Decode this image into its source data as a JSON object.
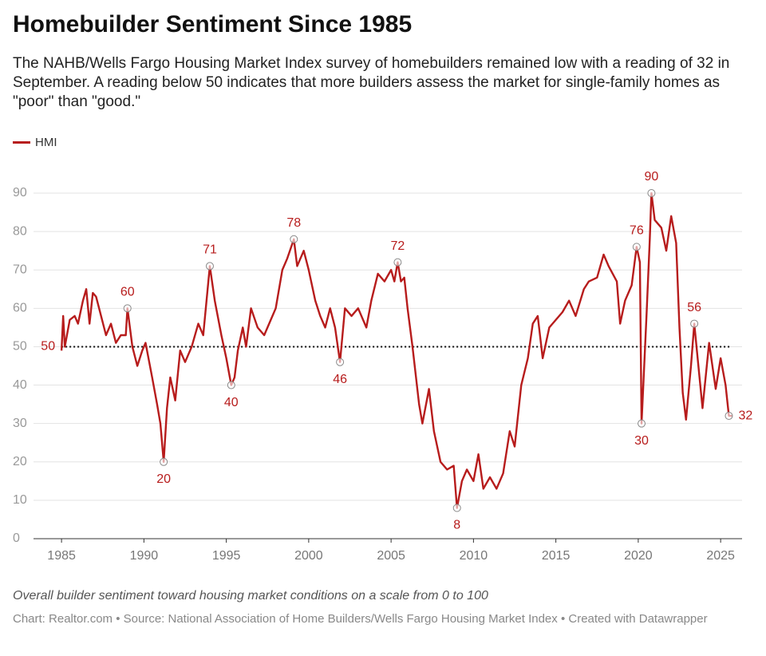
{
  "chart_data": {
    "type": "line",
    "title": "Homebuilder Sentiment Since 1985",
    "subtitle": "The NAHB/Wells Fargo Housing Market Index survey of homebuilders remained low with a reading of 32 in September. A reading below 50 indicates that more builders assess the market for single-family homes as \"poor\" than \"good.\"",
    "caption": "Overall builder sentiment toward housing market conditions on a scale from 0 to 100",
    "source": "Chart: Realtor.com • Source: National Association of Home Builders/Wells Fargo Housing Market Index • Created with Datawrapper",
    "xlim": [
      1983.3,
      2026.3
    ],
    "xticks": [
      1985,
      1990,
      1995,
      2000,
      2005,
      2010,
      2015,
      2020,
      2025
    ],
    "ylim": [
      0,
      90
    ],
    "yticks": [
      0,
      10,
      20,
      30,
      40,
      50,
      60,
      70,
      80,
      90
    ],
    "grid": true,
    "reference_line": 50,
    "series": [
      {
        "name": "HMI",
        "color": "#b71c1c",
        "x": [
          1985.0,
          1985.1,
          1985.2,
          1985.5,
          1985.8,
          1986.0,
          1986.3,
          1986.5,
          1986.7,
          1986.9,
          1987.1,
          1987.4,
          1987.7,
          1988.0,
          1988.3,
          1988.6,
          1988.9,
          1989.0,
          1989.3,
          1989.6,
          1989.9,
          1990.1,
          1990.5,
          1990.8,
          1991.0,
          1991.2,
          1991.4,
          1991.6,
          1991.9,
          1992.2,
          1992.5,
          1992.9,
          1993.3,
          1993.6,
          1994.0,
          1994.3,
          1994.7,
          1995.0,
          1995.3,
          1995.5,
          1995.7,
          1996.0,
          1996.2,
          1996.5,
          1996.9,
          1997.3,
          1997.7,
          1998.0,
          1998.4,
          1998.7,
          1999.1,
          1999.3,
          1999.7,
          2000.0,
          2000.4,
          2000.7,
          2001.0,
          2001.3,
          2001.6,
          2001.9,
          2002.2,
          2002.6,
          2003.0,
          2003.5,
          2003.8,
          2004.2,
          2004.6,
          2005.0,
          2005.2,
          2005.4,
          2005.6,
          2005.8,
          2006.0,
          2006.3,
          2006.7,
          2006.9,
          2007.3,
          2007.6,
          2008.0,
          2008.4,
          2008.8,
          2009.0,
          2009.3,
          2009.6,
          2010.0,
          2010.3,
          2010.6,
          2011.0,
          2011.4,
          2011.8,
          2012.2,
          2012.5,
          2012.9,
          2013.3,
          2013.6,
          2013.9,
          2014.2,
          2014.6,
          2015.0,
          2015.4,
          2015.8,
          2016.2,
          2016.7,
          2017.0,
          2017.5,
          2017.9,
          2018.2,
          2018.7,
          2018.9,
          2019.2,
          2019.6,
          2019.9,
          2020.1,
          2020.2,
          2020.5,
          2020.7,
          2020.8,
          2021.0,
          2021.4,
          2021.7,
          2022.0,
          2022.3,
          2022.5,
          2022.7,
          2022.9,
          2023.2,
          2023.4,
          2023.9,
          2024.3,
          2024.7,
          2025.0,
          2025.3,
          2025.5,
          2025.7
        ],
        "values": [
          49,
          58,
          50,
          57,
          58,
          56,
          62,
          65,
          56,
          64,
          63,
          58,
          53,
          56,
          51,
          53,
          53,
          60,
          50,
          45,
          49,
          51,
          42,
          35,
          30,
          20,
          34,
          42,
          36,
          49,
          46,
          50,
          56,
          53,
          71,
          62,
          53,
          47,
          40,
          42,
          49,
          55,
          50,
          60,
          55,
          53,
          57,
          60,
          70,
          73,
          78,
          71,
          75,
          70,
          62,
          58,
          55,
          60,
          55,
          46,
          60,
          58,
          60,
          55,
          62,
          69,
          67,
          70,
          67,
          72,
          67,
          68,
          60,
          50,
          35,
          30,
          39,
          28,
          20,
          18,
          19,
          8,
          15,
          18,
          15,
          22,
          13,
          16,
          13,
          17,
          28,
          24,
          40,
          47,
          56,
          58,
          47,
          55,
          57,
          59,
          62,
          58,
          65,
          67,
          68,
          74,
          71,
          67,
          56,
          62,
          66,
          76,
          72,
          30,
          58,
          78,
          90,
          83,
          81,
          75,
          84,
          77,
          55,
          38,
          31,
          45,
          56,
          34,
          51,
          39,
          47,
          40,
          32,
          32
        ]
      }
    ],
    "annotations": [
      {
        "x": 1989.0,
        "value": 60
      },
      {
        "x": 1991.2,
        "value": 20
      },
      {
        "x": 1994.0,
        "value": 71
      },
      {
        "x": 1995.3,
        "value": 40
      },
      {
        "x": 1999.1,
        "value": 78
      },
      {
        "x": 2001.9,
        "value": 46
      },
      {
        "x": 2005.4,
        "value": 72
      },
      {
        "x": 2009.0,
        "value": 8
      },
      {
        "x": 2019.9,
        "value": 76
      },
      {
        "x": 2020.2,
        "value": 30
      },
      {
        "x": 2020.8,
        "value": 90
      },
      {
        "x": 2023.4,
        "value": 56
      },
      {
        "x": 2025.5,
        "value": 32
      }
    ]
  }
}
